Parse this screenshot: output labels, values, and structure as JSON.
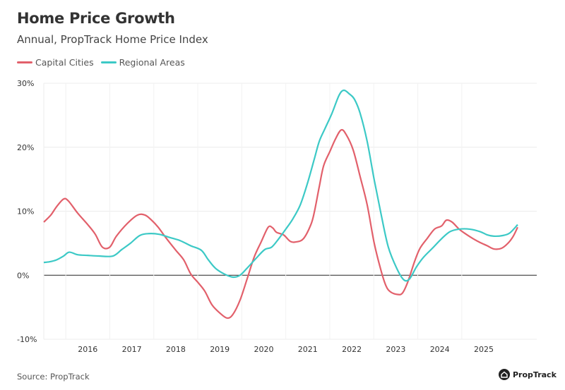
{
  "chart_data": {
    "type": "line",
    "title": "Home Price Growth",
    "subtitle": "Annual, PropTrack Home Price Index",
    "source": "Source: PropTrack",
    "logo_text": "PropTrack",
    "legend_position": "top-left",
    "grid": true,
    "ylim": [
      -10,
      30
    ],
    "xlim": [
      2015.0,
      2025.77
    ],
    "yticks": [
      -10,
      0,
      10,
      20,
      30
    ],
    "ytick_labels": [
      "-10%",
      "0%",
      "10%",
      "20%",
      "30%"
    ],
    "xticks": [
      2016,
      2017,
      2018,
      2019,
      2020,
      2021,
      2022,
      2023,
      2024,
      2025
    ],
    "xtick_labels": [
      "2016",
      "2017",
      "2018",
      "2019",
      "2020",
      "2021",
      "2022",
      "2023",
      "2024",
      "2025"
    ],
    "series": [
      {
        "name": "Capital Cities",
        "color": "#e2606b",
        "x": [
          2015.0,
          2015.16,
          2015.29,
          2015.45,
          2015.56,
          2015.77,
          2016.0,
          2016.17,
          2016.33,
          2016.5,
          2016.65,
          2016.9,
          2017.13,
          2017.3,
          2017.45,
          2017.6,
          2017.77,
          2018.0,
          2018.18,
          2018.34,
          2018.5,
          2018.66,
          2018.82,
          2019.0,
          2019.17,
          2019.3,
          2019.46,
          2019.62,
          2019.78,
          2019.94,
          2020.1,
          2020.2,
          2020.29,
          2020.45,
          2020.6,
          2020.73,
          2020.9,
          2021.07,
          2021.15,
          2021.26,
          2021.36,
          2021.5,
          2021.63,
          2021.76,
          2021.87,
          2022.03,
          2022.19,
          2022.35,
          2022.51,
          2022.67,
          2022.78,
          2022.88,
          2023.04,
          2023.15,
          2023.27,
          2023.43,
          2023.55,
          2023.72,
          2023.88,
          2024.04,
          2024.15,
          2024.28,
          2024.44,
          2024.6,
          2024.76,
          2024.92,
          2025.08,
          2025.23,
          2025.4,
          2025.55,
          2025.67,
          2025.77
        ],
        "y": [
          8.3,
          9.4,
          10.7,
          11.9,
          11.6,
          9.7,
          7.9,
          6.4,
          4.4,
          4.4,
          6.1,
          8.1,
          9.4,
          9.4,
          8.6,
          7.5,
          5.9,
          3.9,
          2.4,
          0.2,
          -1.1,
          -2.5,
          -4.6,
          -5.9,
          -6.7,
          -6.1,
          -3.9,
          -0.6,
          2.8,
          5.2,
          7.5,
          7.4,
          6.7,
          6.3,
          5.3,
          5.2,
          5.7,
          7.9,
          9.9,
          13.8,
          17.1,
          19.3,
          21.3,
          22.7,
          22.0,
          19.6,
          15.4,
          11.0,
          5.0,
          0.6,
          -1.7,
          -2.6,
          -3.0,
          -2.8,
          -1.1,
          2.2,
          4.2,
          5.8,
          7.2,
          7.7,
          8.6,
          8.3,
          7.2,
          6.4,
          5.7,
          5.1,
          4.6,
          4.1,
          4.2,
          5.0,
          6.1,
          7.5
        ]
      },
      {
        "name": "Regional Areas",
        "color": "#3cc9c6",
        "x": [
          2015.0,
          2015.13,
          2015.29,
          2015.45,
          2015.58,
          2015.77,
          2016.0,
          2016.25,
          2016.57,
          2016.77,
          2016.97,
          2017.18,
          2017.38,
          2017.62,
          2017.86,
          2018.1,
          2018.34,
          2018.58,
          2018.74,
          2018.9,
          2019.1,
          2019.3,
          2019.46,
          2019.62,
          2019.82,
          2020.02,
          2020.18,
          2020.34,
          2020.5,
          2020.66,
          2020.83,
          2020.99,
          2021.15,
          2021.26,
          2021.39,
          2021.55,
          2021.71,
          2021.82,
          2021.95,
          2022.06,
          2022.19,
          2022.35,
          2022.51,
          2022.67,
          2022.83,
          2023.02,
          2023.18,
          2023.31,
          2023.47,
          2023.63,
          2023.83,
          2024.04,
          2024.23,
          2024.44,
          2024.68,
          2024.92,
          2025.08,
          2025.23,
          2025.43,
          2025.59,
          2025.77
        ],
        "y": [
          2.0,
          2.1,
          2.4,
          3.0,
          3.6,
          3.2,
          3.1,
          3.0,
          3.0,
          4.0,
          5.0,
          6.2,
          6.5,
          6.4,
          5.9,
          5.4,
          4.6,
          3.9,
          2.4,
          1.1,
          0.2,
          -0.3,
          0.0,
          1.1,
          2.6,
          4.0,
          4.4,
          5.7,
          7.2,
          8.8,
          11.0,
          14.3,
          18.2,
          20.9,
          22.9,
          25.3,
          28.1,
          28.9,
          28.3,
          27.5,
          25.3,
          20.9,
          14.9,
          9.4,
          4.4,
          1.1,
          -0.7,
          -0.6,
          1.3,
          2.8,
          4.2,
          5.7,
          6.8,
          7.2,
          7.2,
          6.8,
          6.3,
          6.1,
          6.2,
          6.6,
          7.9
        ]
      }
    ]
  }
}
